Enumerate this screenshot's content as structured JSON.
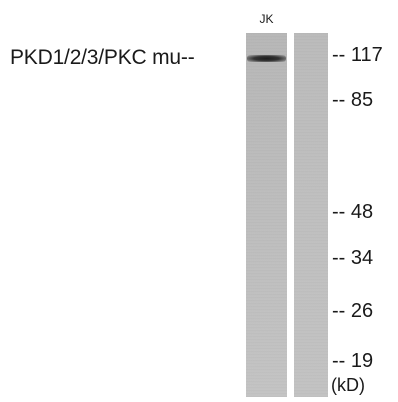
{
  "lane_label": "JK",
  "protein_label": "PKD1/2/3/PKC mu--",
  "markers": [
    {
      "label": "-- 117",
      "kd": 117
    },
    {
      "label": "-- 85",
      "kd": 85
    },
    {
      "label": "-- 48",
      "kd": 48
    },
    {
      "label": "-- 34",
      "kd": 34
    },
    {
      "label": "-- 26",
      "kd": 26
    },
    {
      "label": "-- 19",
      "kd": 19
    }
  ],
  "unit": "(kD)"
}
